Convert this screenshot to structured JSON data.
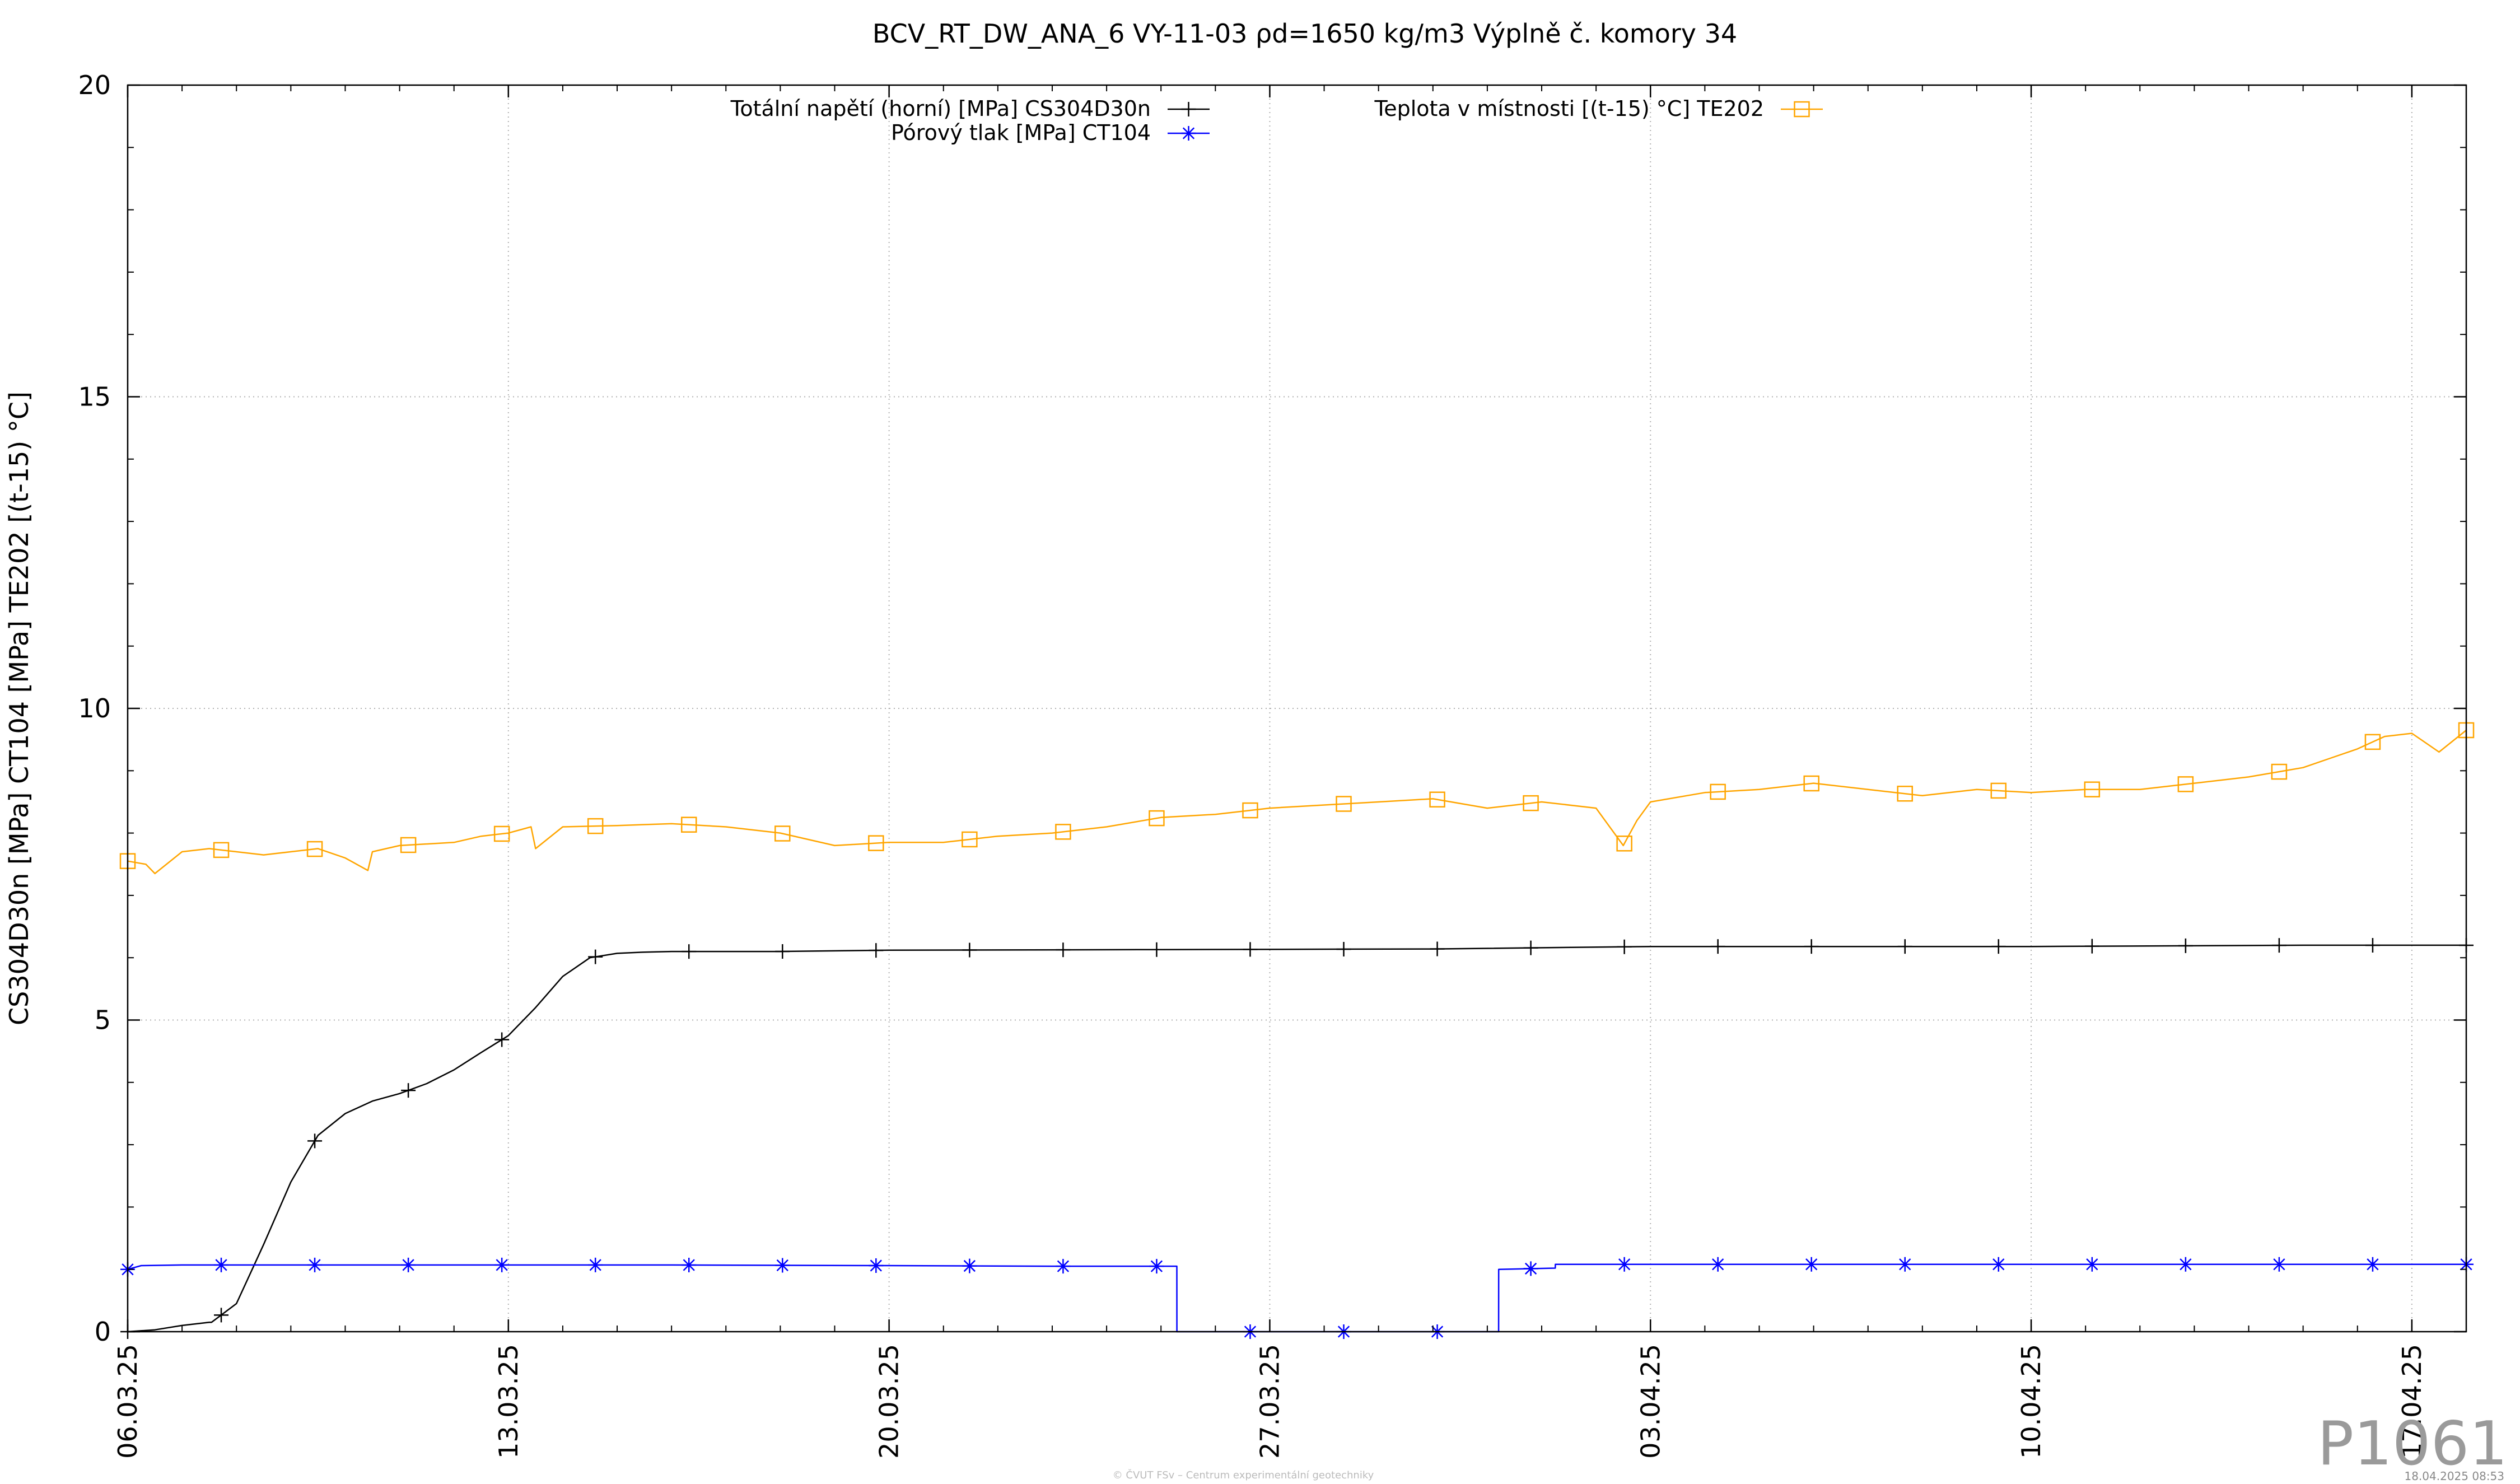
{
  "chart_data": {
    "type": "line",
    "title": "BCV_RT_DW_ANA_6 VY-11-03 ρd=1650 kg/m3 Výplně č. komory 34",
    "ylabel": "CS304D30n [MPa] CT104 [MPa] TE202 [(t-15) °C]",
    "xlabel": "",
    "xlim": [
      "2025-03-06",
      "2025-04-18"
    ],
    "ylim": [
      0,
      20
    ],
    "x_ticks": [
      "06.03.25",
      "13.03.25",
      "20.03.25",
      "27.03.25",
      "03.04.25",
      "10.04.25",
      "17.04.25"
    ],
    "y_ticks": [
      "0",
      "5",
      "10",
      "15",
      "20"
    ],
    "grid": true,
    "legend_position": "top",
    "series": [
      {
        "name": "Totální napětí (horní) [MPa] CS304D30n",
        "color": "#000000",
        "marker": "plus",
        "x": [
          "2025-03-06 00:00",
          "2025-03-06 12:00",
          "2025-03-07 00:00",
          "2025-03-07 12:00",
          "2025-03-07 13:00",
          "2025-03-08 00:00",
          "2025-03-08 12:00",
          "2025-03-09 00:00",
          "2025-03-09 12:00",
          "2025-03-10 00:00",
          "2025-03-10 12:00",
          "2025-03-11 00:00",
          "2025-03-11 12:00",
          "2025-03-12 00:00",
          "2025-03-12 12:00",
          "2025-03-13 00:00",
          "2025-03-13 12:00",
          "2025-03-14 00:00",
          "2025-03-14 12:00",
          "2025-03-15 00:00",
          "2025-03-15 12:00",
          "2025-03-16 00:00",
          "2025-03-17 00:00",
          "2025-03-18 00:00",
          "2025-03-20 00:00",
          "2025-03-25 00:00",
          "2025-03-30 00:00",
          "2025-04-03 00:00",
          "2025-04-10 00:00",
          "2025-04-15 00:00",
          "2025-04-18 00:00"
        ],
        "y": [
          0.0,
          0.03,
          0.1,
          0.15,
          0.15,
          0.45,
          1.4,
          2.4,
          3.15,
          3.5,
          3.7,
          3.82,
          3.98,
          4.2,
          4.48,
          4.75,
          5.2,
          5.7,
          6.0,
          6.07,
          6.09,
          6.1,
          6.1,
          6.1,
          6.12,
          6.13,
          6.14,
          6.18,
          6.18,
          6.2,
          6.2
        ]
      },
      {
        "name": "Pórový tlak [MPa] CT104",
        "color": "#0000ff",
        "marker": "star",
        "x": [
          "2025-03-06 00:00",
          "2025-03-06 06:00",
          "2025-03-07 00:00",
          "2025-03-08 00:00",
          "2025-03-10 00:00",
          "2025-03-13 00:00",
          "2025-03-16 00:00",
          "2025-03-20 00:00",
          "2025-03-23 00:00",
          "2025-03-25 07:00",
          "2025-03-25 07:01",
          "2025-03-27 00:00",
          "2025-03-31 05:00",
          "2025-03-31 05:01",
          "2025-04-01 06:00",
          "2025-04-01 06:01",
          "2025-04-03 00:00",
          "2025-04-10 00:00",
          "2025-04-18 00:00"
        ],
        "y": [
          1.0,
          1.06,
          1.07,
          1.07,
          1.07,
          1.07,
          1.07,
          1.06,
          1.05,
          1.05,
          0.0,
          0.0,
          0.0,
          1.0,
          1.02,
          1.08,
          1.08,
          1.08,
          1.08
        ]
      },
      {
        "name": "Teplota v místnosti [(t-15) °C] TE202",
        "color": "#ffa500",
        "marker": "square",
        "x": [
          "2025-03-06 00:00",
          "2025-03-06 08:00",
          "2025-03-06 12:00",
          "2025-03-07 00:00",
          "2025-03-07 12:00",
          "2025-03-08 00:00",
          "2025-03-08 12:00",
          "2025-03-09 00:00",
          "2025-03-09 12:00",
          "2025-03-10 00:00",
          "2025-03-10 10:00",
          "2025-03-10 12:00",
          "2025-03-11 00:00",
          "2025-03-12 00:00",
          "2025-03-12 12:00",
          "2025-03-13 00:00",
          "2025-03-13 10:00",
          "2025-03-13 12:00",
          "2025-03-14 00:00",
          "2025-03-15 00:00",
          "2025-03-16 00:00",
          "2025-03-17 00:00",
          "2025-03-18 00:00",
          "2025-03-19 00:00",
          "2025-03-20 00:00",
          "2025-03-21 00:00",
          "2025-03-22 00:00",
          "2025-03-23 00:00",
          "2025-03-24 00:00",
          "2025-03-25 00:00",
          "2025-03-26 00:00",
          "2025-03-27 00:00",
          "2025-03-28 00:00",
          "2025-03-29 00:00",
          "2025-03-30 00:00",
          "2025-03-31 00:00",
          "2025-04-01 00:00",
          "2025-04-02 00:00",
          "2025-04-02 12:00",
          "2025-04-02 18:00",
          "2025-04-03 00:00",
          "2025-04-04 00:00",
          "2025-04-05 00:00",
          "2025-04-06 00:00",
          "2025-04-07 00:00",
          "2025-04-08 00:00",
          "2025-04-09 00:00",
          "2025-04-10 00:00",
          "2025-04-11 00:00",
          "2025-04-12 00:00",
          "2025-04-13 00:00",
          "2025-04-14 00:00",
          "2025-04-15 00:00",
          "2025-04-15 12:00",
          "2025-04-16 00:00",
          "2025-04-16 12:00",
          "2025-04-17 00:00",
          "2025-04-17 12:00",
          "2025-04-18 00:00"
        ],
        "y": [
          7.55,
          7.5,
          7.35,
          7.7,
          7.75,
          7.7,
          7.65,
          7.7,
          7.75,
          7.6,
          7.4,
          7.7,
          7.8,
          7.85,
          7.95,
          8.0,
          8.1,
          7.75,
          8.1,
          8.12,
          8.15,
          8.1,
          8.0,
          7.8,
          7.85,
          7.85,
          7.95,
          8.0,
          8.1,
          8.25,
          8.3,
          8.4,
          8.45,
          8.5,
          8.55,
          8.4,
          8.5,
          8.4,
          7.8,
          8.2,
          8.5,
          8.65,
          8.7,
          8.8,
          8.7,
          8.6,
          8.7,
          8.65,
          8.7,
          8.7,
          8.8,
          8.9,
          9.05,
          9.2,
          9.35,
          9.55,
          9.6,
          9.3,
          9.65
        ]
      }
    ]
  },
  "watermark": "P1061",
  "footer_credit": "© ČVUT FSv – Centrum experimentální geotechniky",
  "footer_timestamp": "18.04.2025 08:53"
}
